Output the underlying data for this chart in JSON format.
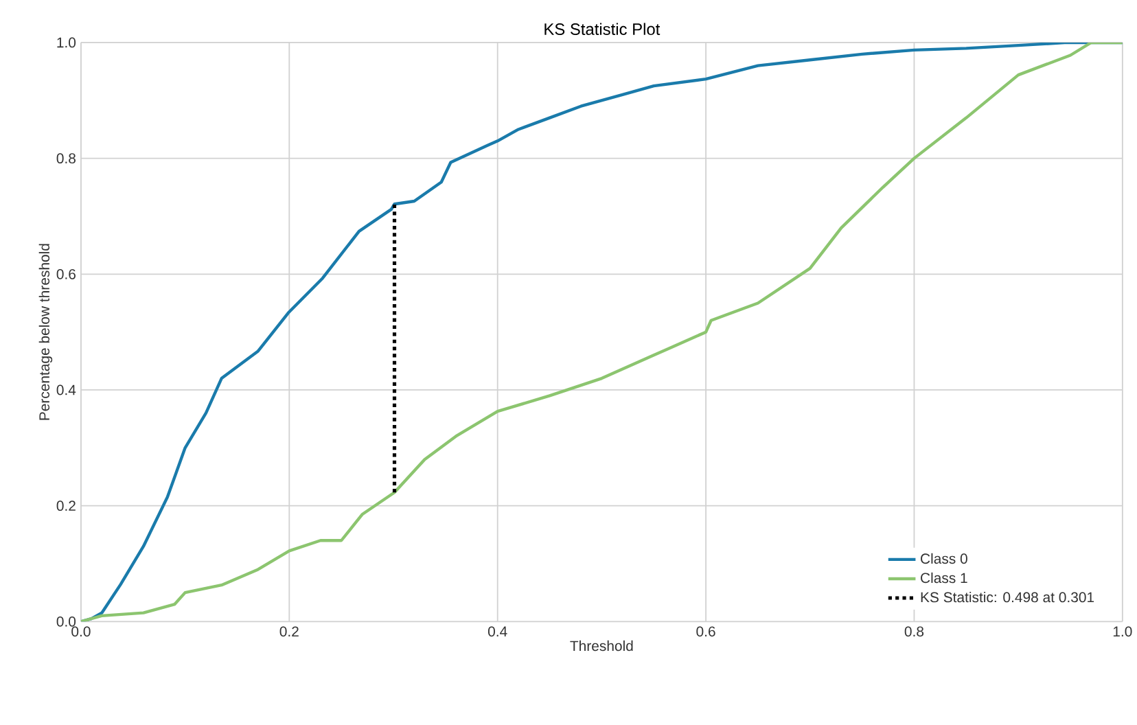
{
  "chart_data": {
    "type": "line",
    "title": "KS Statistic Plot",
    "xlabel": "Threshold",
    "ylabel": "Percentage below threshold",
    "xlim": [
      0,
      1
    ],
    "ylim": [
      0,
      1
    ],
    "xticks": [
      {
        "value": 0,
        "label": "0.0"
      },
      0.2,
      0.4,
      0.6,
      0.8,
      {
        "value": 1,
        "label": "1.0"
      }
    ],
    "yticks": [
      {
        "value": 0,
        "label": "0.0"
      },
      0.2,
      0.4,
      0.6,
      0.8,
      {
        "value": 1,
        "label": "1.0"
      }
    ],
    "grid": true,
    "legend": "bottom right",
    "marker": "none",
    "series": [
      {
        "name": "Class 0",
        "color": "#1a7bab",
        "line_style": "solid",
        "x": [
          0,
          0.01,
          0.02,
          0.038,
          0.06,
          0.083,
          0.1,
          0.12,
          0.135,
          0.17,
          0.199,
          0.232,
          0.267,
          0.298,
          0.301,
          0.32,
          0.346,
          0.355,
          0.39,
          0.4,
          0.42,
          0.45,
          0.48,
          0.52,
          0.55,
          0.6,
          0.65,
          0.7,
          0.75,
          0.8,
          0.85,
          0.9,
          0.947,
          1
        ],
        "values": [
          0,
          0.005,
          0.015,
          0.064,
          0.13,
          0.215,
          0.3,
          0.36,
          0.42,
          0.467,
          0.533,
          0.593,
          0.674,
          0.712,
          0.721,
          0.726,
          0.759,
          0.793,
          0.822,
          0.83,
          0.85,
          0.87,
          0.89,
          0.91,
          0.925,
          0.937,
          0.96,
          0.97,
          0.98,
          0.987,
          0.99,
          0.995,
          1,
          1
        ]
      },
      {
        "name": "Class 1",
        "color": "#8cc56f",
        "line_style": "solid",
        "x": [
          0,
          0.02,
          0.06,
          0.09,
          0.1,
          0.135,
          0.17,
          0.2,
          0.23,
          0.25,
          0.27,
          0.301,
          0.33,
          0.36,
          0.4,
          0.45,
          0.5,
          0.55,
          0.6,
          0.605,
          0.65,
          0.7,
          0.73,
          0.77,
          0.8,
          0.85,
          0.9,
          0.95,
          0.97,
          1
        ],
        "values": [
          0,
          0.01,
          0.015,
          0.03,
          0.05,
          0.063,
          0.09,
          0.122,
          0.14,
          0.14,
          0.185,
          0.223,
          0.28,
          0.32,
          0.363,
          0.39,
          0.42,
          0.46,
          0.5,
          0.52,
          0.55,
          0.61,
          0.68,
          0.75,
          0.8,
          0.87,
          0.944,
          0.978,
          1,
          1
        ]
      },
      {
        "name": "KS Statistic: 0.498 at 0.301",
        "color": "#000000",
        "line_style": "dotted",
        "x": [
          0.301,
          0.301
        ],
        "values": [
          0.223,
          0.721
        ]
      }
    ]
  }
}
